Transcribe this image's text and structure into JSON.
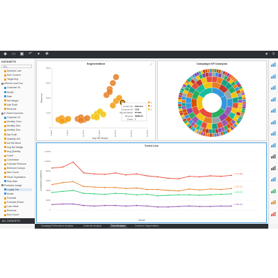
{
  "toolbar": {
    "icons": [
      "logo-icon",
      "folder-icon",
      "save-icon",
      "undo-icon",
      "filter-icon",
      "share-icon"
    ]
  },
  "sidebar": {
    "header": "DATASETS",
    "search_placeholder": "ALL",
    "footer": "ALL DATASETS",
    "items": [
      {
        "label": "Dynamic Last",
        "color": "#f39c12"
      },
      {
        "label": "Sum Custom",
        "color": "#f39c12"
      },
      {
        "label": "Target Buy",
        "color": "#f39c12"
      },
      {
        "label": "eWorld Local Cus",
        "color": "#888888"
      },
      {
        "label": "Customer ID",
        "color": "#3498db"
      },
      {
        "label": "Month",
        "color": "#3498db"
      },
      {
        "label": "Date",
        "color": "#3498db"
      },
      {
        "label": "Net Margin",
        "color": "#f39c12"
      },
      {
        "label": "Add Profit",
        "color": "#f39c12"
      },
      {
        "label": "Revenue",
        "color": "#f39c12"
      },
      {
        "label": "E-Store Economic",
        "color": "#888888"
      },
      {
        "label": "Customer ID",
        "color": "#3498db"
      },
      {
        "label": "Monthly Cons",
        "color": "#f39c12"
      },
      {
        "label": "Monthly Disc",
        "color": "#f39c12"
      },
      {
        "label": "Monthly Disc",
        "color": "#f39c12"
      },
      {
        "label": "Net Profit",
        "color": "#f39c12"
      },
      {
        "label": "Quantity Ord",
        "color": "#f39c12"
      },
      {
        "label": "Ad Roll Bend",
        "color": "#f39c12"
      },
      {
        "label": "Avg Net Margin",
        "color": "#f39c12"
      },
      {
        "label": "Avg Quantity",
        "color": "#f39c12"
      },
      {
        "label": "Count",
        "color": "#f39c12"
      },
      {
        "label": "Conversion",
        "color": "#f39c12"
      },
      {
        "label": "Forecast Revenue",
        "color": "#f39c12"
      },
      {
        "label": "Remnant Campa",
        "color": "#f39c12"
      },
      {
        "label": "New Count",
        "color": "#f39c12"
      },
      {
        "label": "Share Duplication",
        "color": "#f39c12"
      },
      {
        "label": "Ship Date",
        "color": "#3498db"
      },
      {
        "label": "Predictive Analyt",
        "color": "#888888"
      },
      {
        "label": "Loyalty Tier",
        "color": "#3498db",
        "selected": true
      },
      {
        "label": "Month",
        "color": "#3498db"
      },
      {
        "label": "Forecast",
        "color": "#f39c12"
      },
      {
        "label": "Forecast (Rever",
        "color": "#f39c12"
      },
      {
        "label": "Loss Value",
        "color": "#f39c12"
      },
      {
        "label": "Revenue",
        "color": "#f39c12"
      },
      {
        "label": "Row Count",
        "color": "#f39c12"
      }
    ]
  },
  "rightbar": {
    "icons": [
      {
        "name": "table-icon",
        "color": "#3498db"
      },
      {
        "name": "bar-chart-icon",
        "color": "#3498db"
      },
      {
        "name": "column-chart-icon",
        "color": "#3498db"
      },
      {
        "name": "line-chart-icon",
        "color": "#3498db"
      },
      {
        "name": "area-chart-icon",
        "color": "#3498db"
      },
      {
        "name": "pie-chart-icon",
        "color": "#3498db"
      },
      {
        "name": "scatter-icon",
        "color": "#3498db"
      },
      {
        "name": "map-icon",
        "color": "#3498db"
      },
      {
        "name": "text-icon",
        "color": "#555555"
      },
      {
        "name": "image-icon",
        "color": "#555555"
      },
      {
        "name": "filter-icon",
        "color": "#3498db"
      },
      {
        "name": "kpi-icon",
        "color": "#27ae60"
      },
      {
        "name": "gauge-icon",
        "color": "#e67e22"
      },
      {
        "name": "add-widget-icon",
        "color": "#e74c3c"
      }
    ]
  },
  "tabs": [
    {
      "label": "Campaign Performance Analysis",
      "active": false
    },
    {
      "label": "Customer Analysis",
      "active": false
    },
    {
      "label": "Trend Analysis",
      "active": true
    },
    {
      "label": "Customer Segmentation",
      "active": false
    }
  ],
  "segmentation": {
    "title": "Segmentation",
    "ylabel": "Revenue",
    "xlabel": "Avg Net Margin",
    "x_ticks": [
      "0.00%",
      "5.00%",
      "10.00%",
      "15.00%",
      "20.00%",
      "25.00%",
      "30.00%"
    ],
    "y_ticks": [
      "0",
      "100K",
      "200K",
      "300K",
      "400K"
    ],
    "tooltip": [
      {
        "k": "Loyalty Tier:",
        "v": "Platinum"
      },
      {
        "k": "Customer ID:",
        "v": "3128"
      },
      {
        "k": "Avg Net Margin:",
        "v": "25.00%"
      },
      {
        "k": "Revenue:",
        "v": "39086.43"
      },
      {
        "k": "Cluster:",
        "v": "1"
      }
    ],
    "legend": [
      "1",
      "2",
      "3"
    ],
    "legend_colors": [
      "#f39c12",
      "#e67e22",
      "#f1c40f"
    ]
  },
  "campaign": {
    "title": "Campaign KPI Analysis"
  },
  "trend": {
    "title": "Trend Line",
    "xlabel": "Month",
    "ylabel": "Customers (Number)",
    "y_ticks": [
      "0",
      "200K",
      "400K",
      "600K",
      "800K",
      "1,000K",
      "1,200K"
    ]
  },
  "chart_data": [
    {
      "type": "scatter",
      "title": "Segmentation",
      "xlabel": "Avg Net Margin",
      "ylabel": "Revenue",
      "xlim": [
        0,
        30
      ],
      "ylim": [
        0,
        400
      ],
      "series": [
        {
          "name": "1",
          "color": "#f39c12",
          "points": [
            [
              2,
              55
            ],
            [
              3,
              65
            ],
            [
              4,
              50
            ],
            [
              5,
              60
            ],
            [
              3,
              45
            ]
          ]
        },
        {
          "name": "2",
          "color": "#e67e22",
          "points": [
            [
              8,
              60
            ],
            [
              9,
              70
            ],
            [
              10,
              55
            ],
            [
              11,
              65
            ],
            [
              9,
              50
            ]
          ]
        },
        {
          "name": "3",
          "color": "#f1c40f",
          "points": [
            [
              13,
              75
            ],
            [
              14,
              95
            ],
            [
              15,
              110
            ],
            [
              16,
              90
            ],
            [
              14,
              70
            ]
          ]
        },
        {
          "name": "3",
          "color": "#e67e22",
          "points": [
            [
              17,
              220
            ],
            [
              18,
              260
            ],
            [
              19,
              300
            ],
            [
              20,
              340
            ],
            [
              18,
              240
            ]
          ]
        },
        {
          "name": "2",
          "color": "#f39c12",
          "points": [
            [
              19,
              150
            ],
            [
              20,
              180
            ],
            [
              21,
              200
            ],
            [
              22,
              170
            ]
          ]
        }
      ]
    },
    {
      "type": "line",
      "title": "Trend Line",
      "xlabel": "Month",
      "ylabel": "Customers (Number)",
      "ylim": [
        0,
        1200
      ],
      "series": [
        {
          "name": "Red",
          "color": "#e74c3c",
          "values": [
            860,
            880,
            980,
            760,
            740,
            730,
            760,
            720,
            740,
            700,
            680,
            650,
            640,
            690,
            680,
            700,
            690,
            710
          ]
        },
        {
          "name": "Orange",
          "color": "#e67e22",
          "values": [
            520,
            560,
            580,
            480,
            470,
            460,
            460,
            440,
            450,
            420,
            420,
            400,
            390,
            430,
            410,
            430,
            420,
            440
          ]
        },
        {
          "name": "Green",
          "color": "#2ecc71",
          "values": [
            360,
            380,
            400,
            340,
            330,
            320,
            340,
            330,
            310,
            320,
            290,
            300,
            310,
            310,
            300,
            310,
            320,
            330
          ]
        },
        {
          "name": "Purple",
          "color": "#8e44ad",
          "values": [
            110,
            120,
            120,
            90,
            80,
            90,
            90,
            80,
            90,
            80,
            60,
            60,
            70,
            80,
            70,
            70,
            80,
            80
          ]
        }
      ],
      "end_labels": [
        {
          "text": "1,777,002",
          "color": "#e74c3c"
        },
        {
          "text": "1,257,111",
          "color": "#e67e22"
        },
        {
          "text": "1,048,333",
          "color": "#2ecc71"
        },
        {
          "text": "1,000,111",
          "color": "#8e44ad"
        }
      ]
    }
  ]
}
